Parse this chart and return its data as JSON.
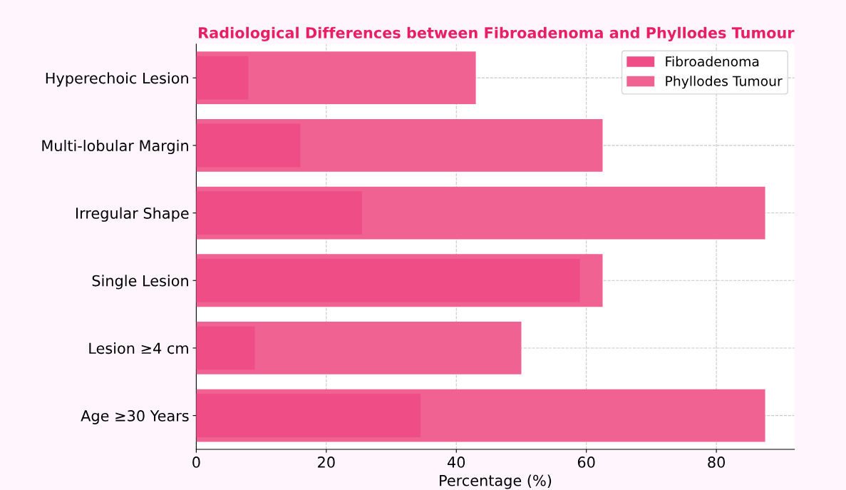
{
  "chart_data": {
    "type": "bar",
    "orientation": "horizontal",
    "title": "Radiological Differences between Fibroadenoma and Phyllodes Tumour",
    "xlabel": "Percentage (%)",
    "categories": [
      "Hyperechoic Lesion",
      "Multi-lobular Margin",
      "Irregular Shape",
      "Single Lesion",
      "Lesion ≥4 cm",
      "Age ≥30 Years"
    ],
    "series": [
      {
        "name": "Fibroadenoma",
        "color": "#ee4d85",
        "values": [
          8,
          16,
          25.5,
          59,
          9,
          34.5
        ]
      },
      {
        "name": "Phyllodes Tumour",
        "color": "#f06292",
        "values": [
          43,
          62.5,
          87.5,
          62.5,
          50,
          87.5
        ]
      }
    ],
    "xlim": [
      0,
      92
    ],
    "xticks": [
      0,
      20,
      40,
      60,
      80
    ],
    "grid": true,
    "legend": "top right"
  }
}
